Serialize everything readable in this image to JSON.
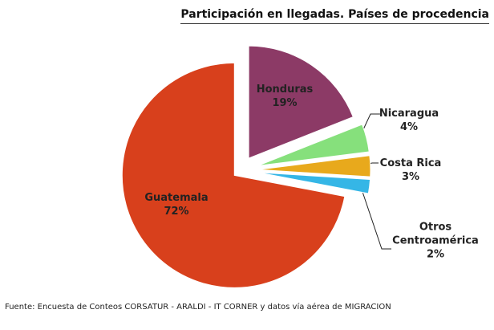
{
  "chart_data": {
    "type": "pie",
    "title": "Participación en llegadas. Países de procedencia",
    "categories": [
      "Honduras",
      "Nicaragua",
      "Costa Rica",
      "Otros Centroamérica",
      "Guatemala"
    ],
    "values": [
      19,
      4,
      3,
      2,
      72
    ],
    "value_labels": [
      "19%",
      "4%",
      "3%",
      "2%",
      "72%"
    ],
    "colors": [
      "#8c3a66",
      "#86e07c",
      "#e8a91c",
      "#35b6e6",
      "#d8401c"
    ],
    "source": "Fuente: Encuesta de Conteos CORSATUR - ARALDI - IT CORNER  y datos vía aérea de MIGRACION"
  }
}
